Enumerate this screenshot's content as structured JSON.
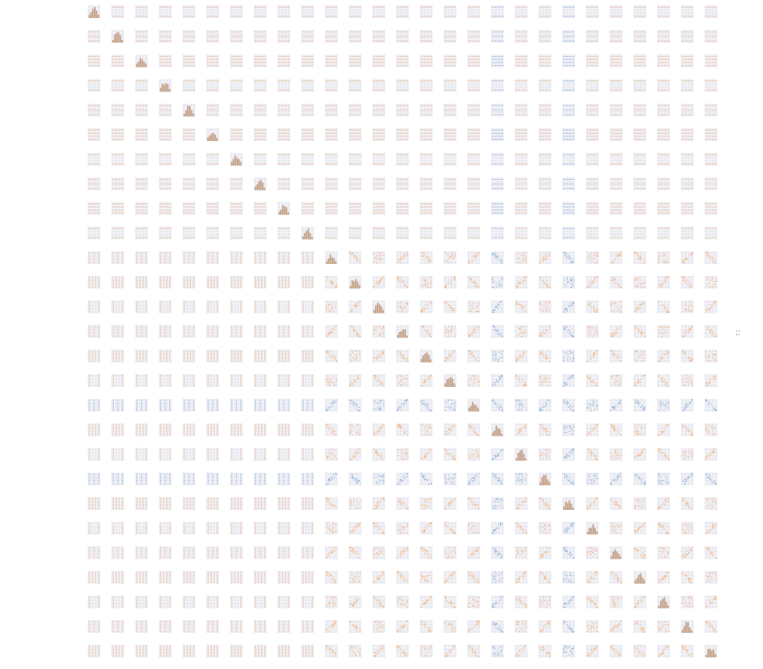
{
  "chart_data": {
    "type": "scatter",
    "n": 27,
    "colors": {
      "panel_bg": "#e9e9f1",
      "grid": "#ffffff",
      "orange": "#f7a65a",
      "blue": "#6aa2d4",
      "hist": "#c6a48a",
      "line": "#d9895a"
    },
    "grid": true,
    "legend": "right",
    "legend_entries": [
      "0",
      "1"
    ],
    "blue_columns": [
      17,
      20
    ],
    "blue_rows": [
      16,
      19
    ],
    "variables": [
      "",
      "",
      "",
      "",
      "",
      "",
      "",
      "",
      "",
      "",
      "",
      "",
      "",
      "",
      "",
      "",
      "",
      "",
      "",
      "",
      "",
      "",
      "",
      "",
      "",
      "",
      ""
    ]
  }
}
